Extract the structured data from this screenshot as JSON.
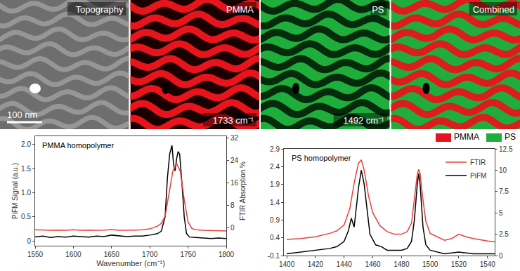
{
  "images": [
    {
      "title": "Topography",
      "scale_bar": "100 nm"
    },
    {
      "title": "PMMA",
      "label": "1733 cm⁻¹",
      "color": "#e8141c"
    },
    {
      "title": "PS",
      "label": "1492 cm⁻¹",
      "color": "#1fae3c"
    },
    {
      "title": "Combined"
    }
  ],
  "legend_items": [
    {
      "name": "PMMA",
      "color": "#e8141c"
    },
    {
      "name": "PS",
      "color": "#1fae3c"
    }
  ],
  "chart_data": [
    {
      "type": "line",
      "title": "PMMA homopolymer",
      "xlabel": "Wavenumber (cm⁻¹)",
      "ylabel": "PiFM Signal (a.u.)",
      "y2label": "FTIR Absorption %",
      "xlim": [
        1550,
        1800
      ],
      "xticks": [
        1550,
        1600,
        1650,
        1700,
        1750,
        1800
      ],
      "ylim": [
        -0.1,
        2.17
      ],
      "yticks": [
        0,
        0.5,
        {
          "value": 1,
          "label": "1.0"
        },
        1.5,
        {
          "value": 2,
          "label": "2.0"
        }
      ],
      "y2lim": [
        -6.5,
        32.7
      ],
      "y2ticks": [
        0,
        8,
        16,
        24,
        32
      ],
      "grid": false,
      "series": [
        {
          "color": "#000000",
          "axis": "y",
          "x": [
            1550,
            1560,
            1570,
            1580,
            1590,
            1600,
            1610,
            1620,
            1630,
            1640,
            1650,
            1660,
            1670,
            1680,
            1690,
            1700,
            1710,
            1715,
            1720,
            1723,
            1726,
            1729,
            1731,
            1733,
            1735,
            1737,
            1739,
            1742,
            1745,
            1748,
            1752,
            1760,
            1770,
            1780,
            1790,
            1800
          ],
          "values": [
            0.08,
            0.1,
            0.07,
            0.09,
            0.08,
            0.1,
            0.09,
            0.08,
            0.1,
            0.09,
            0.12,
            0.1,
            0.09,
            0.1,
            0.1,
            0.12,
            0.15,
            0.2,
            0.5,
            1.3,
            1.8,
            1.98,
            1.6,
            1.45,
            1.7,
            1.85,
            1.8,
            1.2,
            0.5,
            0.15,
            0.08,
            0.07,
            0.06,
            0.05,
            0.06,
            0.05
          ]
        },
        {
          "color": "#e8403a",
          "axis": "y2",
          "x": [
            1550,
            1560,
            1570,
            1580,
            1590,
            1600,
            1610,
            1620,
            1630,
            1640,
            1650,
            1660,
            1670,
            1680,
            1690,
            1700,
            1710,
            1715,
            1720,
            1725,
            1730,
            1735,
            1740,
            1745,
            1750,
            1755,
            1760,
            1770,
            1780,
            1790,
            1800
          ],
          "values": [
            -0.8,
            -0.9,
            -1.0,
            -0.9,
            -1.0,
            -0.8,
            -1.0,
            -0.9,
            -1.0,
            -0.9,
            -0.7,
            -1.0,
            -1.0,
            -0.9,
            -0.8,
            -0.5,
            0.5,
            1.5,
            4,
            12,
            20,
            23,
            20,
            10,
            2,
            -0.3,
            -0.8,
            -1.0,
            -1.1,
            -1.2,
            -1.2
          ]
        }
      ]
    },
    {
      "type": "line",
      "title": "PS homopolymer",
      "xlim": [
        1398,
        1545
      ],
      "xticks": [
        1400,
        1420,
        1440,
        1460,
        1480,
        1500,
        1520,
        1540
      ],
      "ylim": [
        -0.1,
        2.9
      ],
      "yticks": [
        -0.1,
        0.4,
        0.9,
        1.4,
        1.9,
        2.4,
        2.9
      ],
      "y2lim": [
        0,
        12.5
      ],
      "y2ticks": [
        0,
        2.5,
        5,
        7.5,
        10,
        12.5
      ],
      "grid": false,
      "legend": "top right",
      "series": [
        {
          "name": "FTIR",
          "color": "#e8403a",
          "axis": "y2",
          "x": [
            1400,
            1410,
            1420,
            1430,
            1435,
            1440,
            1444,
            1447,
            1450,
            1452,
            1454,
            1457,
            1460,
            1465,
            1470,
            1475,
            1480,
            1484,
            1487,
            1489,
            1491,
            1492,
            1493,
            1495,
            1497,
            1500,
            1505,
            1510,
            1515,
            1520,
            1525,
            1530,
            1540,
            1545
          ],
          "values": [
            1.9,
            2.0,
            2.2,
            2.6,
            2.9,
            3.6,
            5.5,
            8.5,
            10.8,
            11.2,
            10.0,
            7.0,
            5.0,
            3.5,
            2.8,
            2.5,
            2.5,
            2.8,
            3.8,
            6.5,
            9.5,
            10.1,
            9.6,
            6.5,
            4.0,
            2.6,
            2.2,
            1.8,
            2.0,
            2.5,
            2.2,
            2.0,
            1.7,
            1.6
          ]
        },
        {
          "name": "PiFM",
          "color": "#000000",
          "axis": "y",
          "x": [
            1400,
            1410,
            1420,
            1430,
            1435,
            1440,
            1443,
            1445,
            1447,
            1450,
            1452,
            1454,
            1456,
            1458,
            1462,
            1466,
            1470,
            1475,
            1480,
            1484,
            1487,
            1489,
            1491,
            1492,
            1493,
            1495,
            1497,
            1500,
            1505,
            1510,
            1520,
            1530,
            1540,
            1545
          ],
          "values": [
            -0.05,
            0.0,
            0.05,
            0.1,
            0.15,
            0.3,
            0.6,
            0.95,
            0.7,
            1.8,
            2.3,
            1.9,
            1.2,
            0.5,
            0.2,
            0.15,
            0.05,
            0.05,
            0.05,
            0.1,
            0.3,
            0.9,
            1.9,
            2.2,
            1.9,
            0.7,
            0.2,
            0.05,
            0.0,
            -0.05,
            0.0,
            -0.05,
            -0.05,
            -0.05
          ]
        }
      ]
    }
  ]
}
